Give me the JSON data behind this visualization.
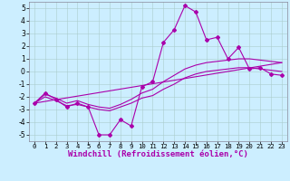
{
  "title": "",
  "xlabel": "Windchill (Refroidissement éolien,°C)",
  "ylabel": "",
  "xlim": [
    -0.5,
    23.5
  ],
  "ylim": [
    -5.5,
    5.5
  ],
  "yticks": [
    -5,
    -4,
    -3,
    -2,
    -1,
    0,
    1,
    2,
    3,
    4,
    5
  ],
  "xticks": [
    0,
    1,
    2,
    3,
    4,
    5,
    6,
    7,
    8,
    9,
    10,
    11,
    12,
    13,
    14,
    15,
    16,
    17,
    18,
    19,
    20,
    21,
    22,
    23
  ],
  "bg_color": "#cceeff",
  "grid_color": "#aacccc",
  "line_color": "#aa00aa",
  "line1_x": [
    0,
    1,
    2,
    3,
    4,
    5,
    6,
    7,
    8,
    9,
    10,
    11,
    12,
    13,
    14,
    15,
    16,
    17,
    18,
    19,
    20,
    21,
    22,
    23
  ],
  "line1_y": [
    -2.5,
    -1.7,
    -2.2,
    -2.8,
    -2.5,
    -2.8,
    -5.0,
    -5.0,
    -3.8,
    -4.3,
    -1.2,
    -0.8,
    2.3,
    3.3,
    5.2,
    4.7,
    2.5,
    2.7,
    1.0,
    1.9,
    0.2,
    0.3,
    -0.2,
    -0.3
  ],
  "line2_x": [
    0,
    1,
    2,
    3,
    4,
    5,
    6,
    7,
    8,
    9,
    10,
    11,
    12,
    13,
    14,
    15,
    16,
    17,
    18,
    19,
    20,
    21,
    22,
    23
  ],
  "line2_y": [
    -2.5,
    -1.8,
    -2.1,
    -2.5,
    -2.3,
    -2.6,
    -2.8,
    -2.9,
    -2.6,
    -2.2,
    -1.7,
    -1.4,
    -0.8,
    -0.3,
    0.2,
    0.5,
    0.7,
    0.8,
    0.9,
    1.0,
    1.0,
    0.9,
    0.8,
    0.7
  ],
  "line3_x": [
    0,
    1,
    2,
    3,
    4,
    5,
    6,
    7,
    8,
    9,
    10,
    11,
    12,
    13,
    14,
    15,
    16,
    17,
    18,
    19,
    20,
    21,
    22,
    23
  ],
  "line3_y": [
    -2.5,
    -2.0,
    -2.3,
    -2.7,
    -2.6,
    -2.8,
    -3.0,
    -3.1,
    -2.8,
    -2.5,
    -2.1,
    -1.9,
    -1.4,
    -1.0,
    -0.5,
    -0.2,
    0.0,
    0.1,
    0.2,
    0.3,
    0.3,
    0.2,
    0.1,
    0.0
  ],
  "line4_x": [
    0,
    23
  ],
  "line4_y": [
    -2.5,
    0.7
  ],
  "xlabel_fontsize": 6.5,
  "tick_fontsize": 6
}
